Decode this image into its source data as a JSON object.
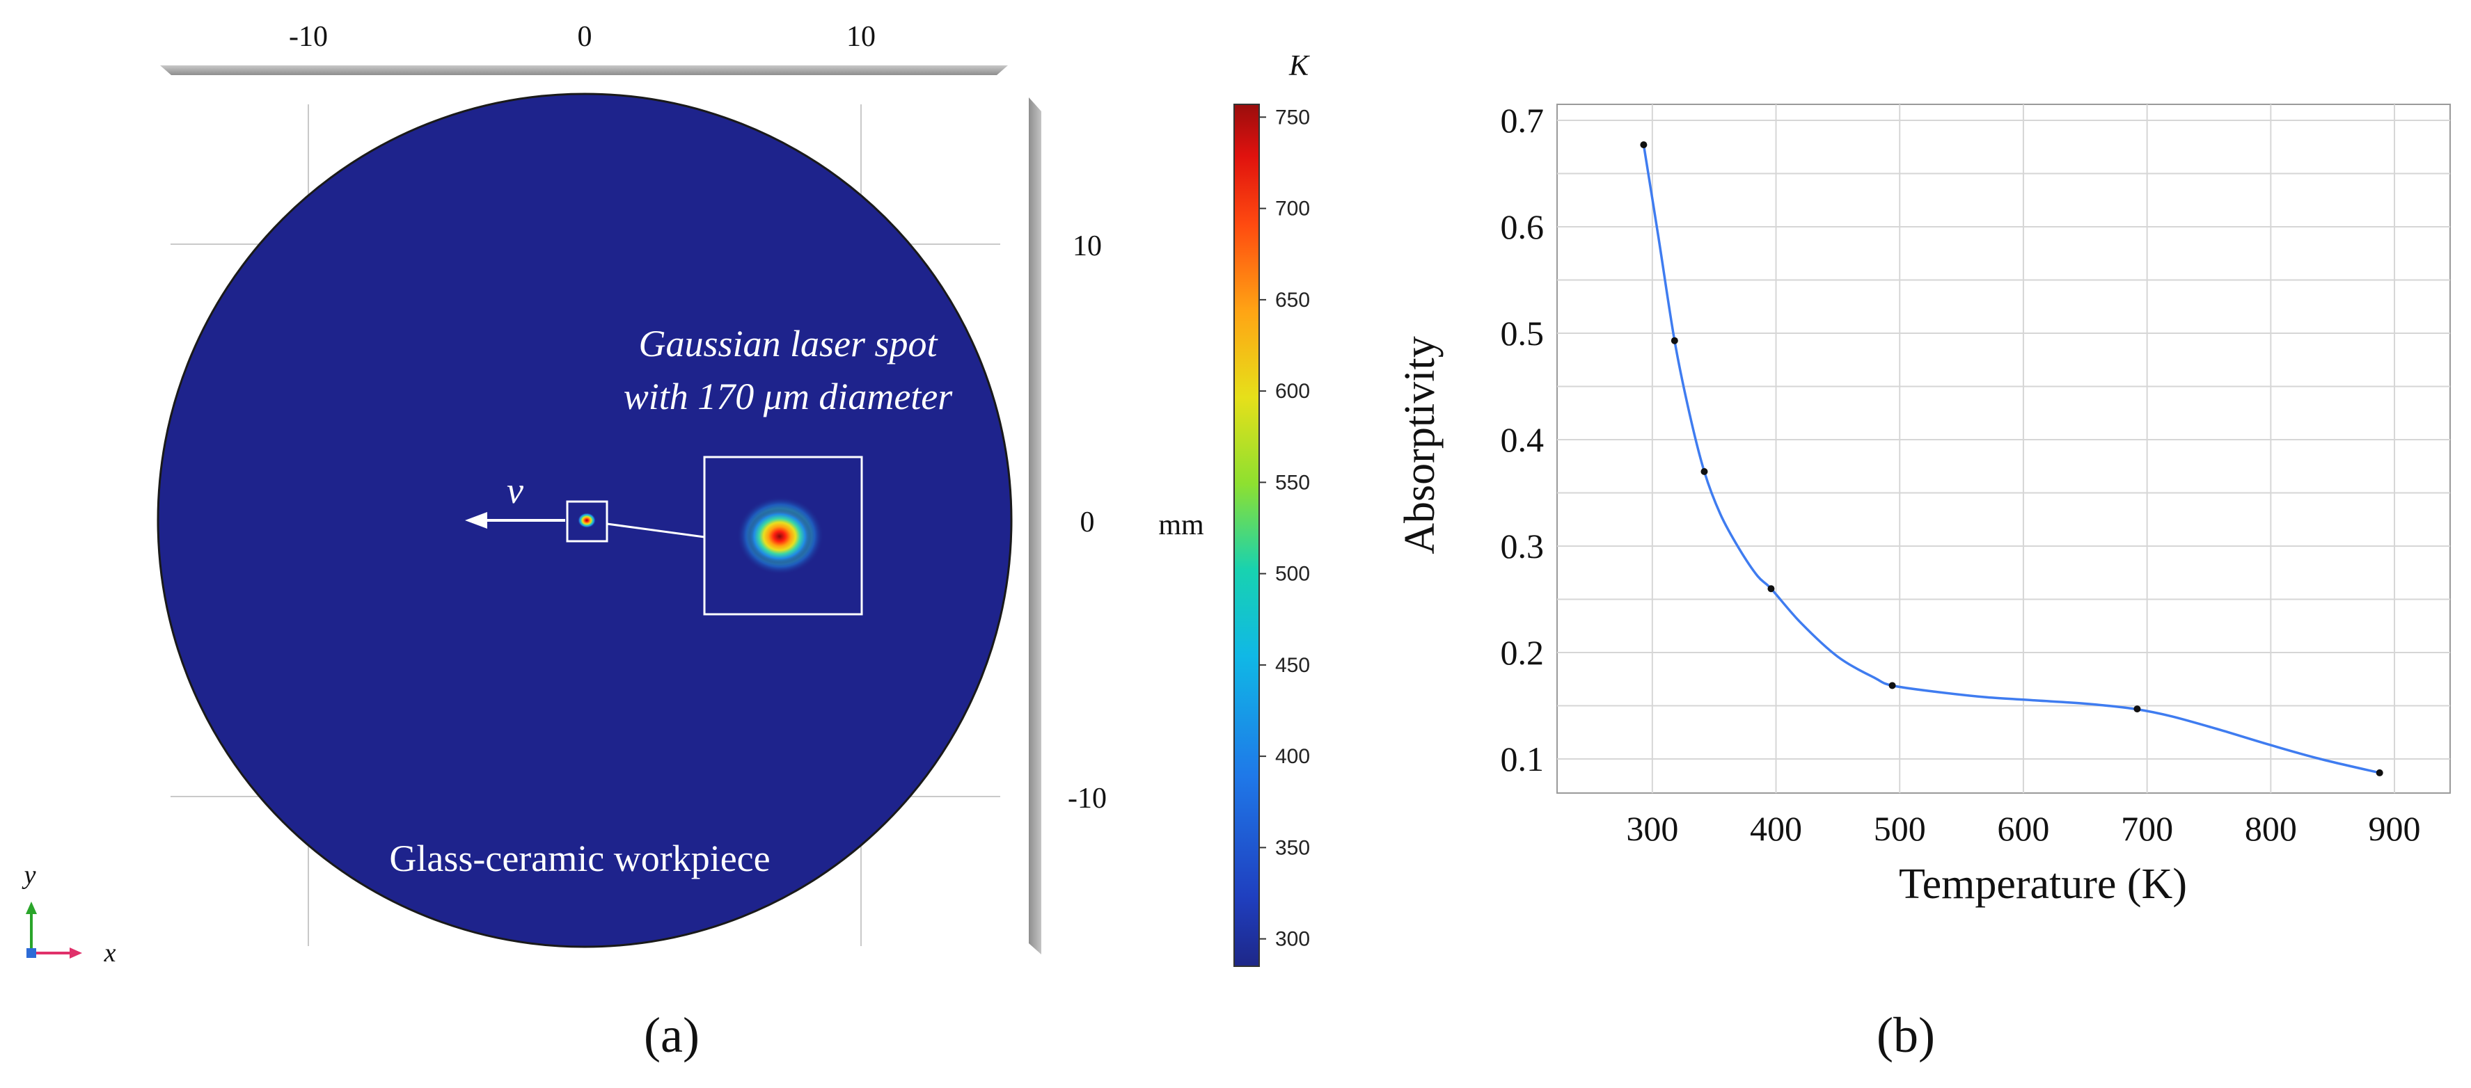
{
  "chart_data": [
    {
      "type": "heatmap",
      "panel_label": "(a)",
      "x_ticks": [
        -10,
        0,
        10
      ],
      "y_ticks": [
        10,
        0,
        -10
      ],
      "axis_unit": "mm",
      "colorbar": {
        "unit": "K",
        "min": 285,
        "max": 757,
        "ticks": [
          750,
          700,
          650,
          600,
          550,
          500,
          450,
          400,
          350,
          300
        ]
      },
      "workpiece": {
        "center_x_mm": 0,
        "center_y_mm": 0,
        "radius_mm": 15,
        "temperature_K": 293
      },
      "laser_spot": {
        "x_mm": 0,
        "y_mm": 0,
        "peak_temperature_K": 757
      },
      "velocity_label": "v",
      "spot_label_line1": "Gaussian laser spot",
      "spot_label_line2": "with 170 μm diameter",
      "workpiece_label": "Glass-ceramic workpiece",
      "triad": {
        "y_label": "y",
        "x_label": "x"
      }
    },
    {
      "type": "line",
      "panel_label": "(b)",
      "xlabel": "Temperature (K)",
      "ylabel": "Absorptivity",
      "xlim": [
        223,
        945
      ],
      "ylim": [
        0.068,
        0.715
      ],
      "x_ticks": [
        300,
        400,
        500,
        600,
        700,
        800,
        900
      ],
      "y_ticks": [
        0.1,
        0.2,
        0.3,
        0.4,
        0.5,
        0.6,
        0.7
      ],
      "x": [
        293,
        305,
        318,
        330,
        342,
        355,
        370,
        385,
        396,
        420,
        450,
        480,
        494,
        530,
        570,
        610,
        650,
        690,
        720,
        760,
        800,
        840,
        888
      ],
      "y": [
        0.677,
        0.59,
        0.493,
        0.425,
        0.37,
        0.33,
        0.298,
        0.272,
        0.26,
        0.228,
        0.196,
        0.176,
        0.169,
        0.163,
        0.158,
        0.155,
        0.152,
        0.147,
        0.14,
        0.127,
        0.113,
        0.1,
        0.087
      ],
      "markers": [
        {
          "x": 293,
          "y": 0.677
        },
        {
          "x": 318,
          "y": 0.493
        },
        {
          "x": 342,
          "y": 0.37
        },
        {
          "x": 396,
          "y": 0.26
        },
        {
          "x": 494,
          "y": 0.169
        },
        {
          "x": 692,
          "y": 0.147
        },
        {
          "x": 888,
          "y": 0.087
        }
      ]
    }
  ]
}
